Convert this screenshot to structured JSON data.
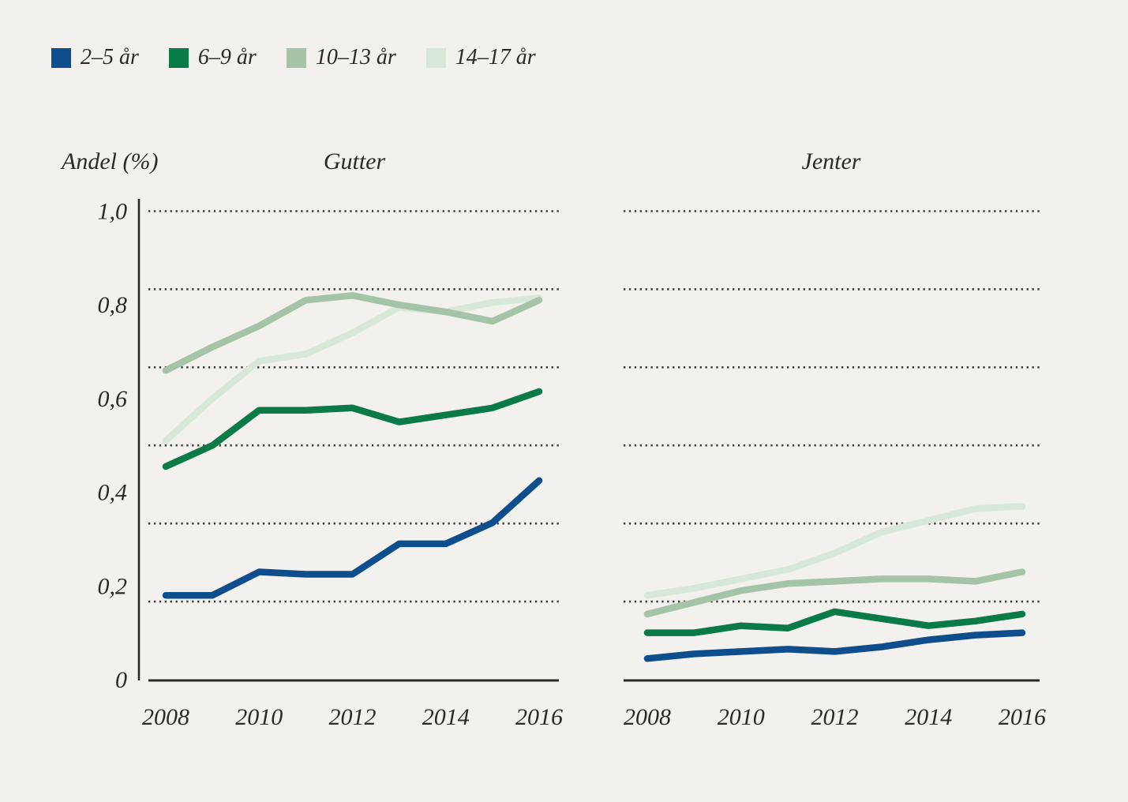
{
  "labels": {
    "y_axis_title": "Andel (%)"
  },
  "legend": {
    "items": [
      {
        "label": "2–5 år",
        "color": "#0f4e8c"
      },
      {
        "label": "6–9 år",
        "color": "#0a7a46"
      },
      {
        "label": "10–13 år",
        "color": "#a5c4a7"
      },
      {
        "label": "14–17 år",
        "color": "#d7e8d8"
      }
    ]
  },
  "chart_data": {
    "type": "line",
    "x": [
      2008,
      2009,
      2010,
      2011,
      2012,
      2013,
      2014,
      2015,
      2016
    ],
    "x_tick_labels": [
      "2008",
      "2010",
      "2012",
      "2014",
      "2016"
    ],
    "y_tick_labels": [
      "1,0",
      "0,8",
      "0,6",
      "0,4",
      "0,2",
      "0"
    ],
    "y_tick_values": [
      1.0,
      0.8,
      0.6,
      0.4,
      0.2,
      0
    ],
    "gridline_values": [
      1.0,
      0.8333,
      0.6667,
      0.5,
      0.3333,
      0.1667
    ],
    "ylim": [
      0,
      1.0
    ],
    "grid": "dotted",
    "legend_position": "top-left",
    "colors": {
      "background": "#f2f1ee",
      "text": "#2b2a26",
      "gridline": "#3c3b37",
      "axis": "#2b2a26"
    },
    "panels": [
      {
        "title": "Gutter",
        "series": [
          {
            "name": "2–5 år",
            "color": "#0f4e8c",
            "values": [
              0.18,
              0.18,
              0.23,
              0.225,
              0.225,
              0.29,
              0.29,
              0.335,
              0.425
            ]
          },
          {
            "name": "6–9 år",
            "color": "#0a7a46",
            "values": [
              0.455,
              0.5,
              0.575,
              0.575,
              0.58,
              0.55,
              0.565,
              0.58,
              0.615
            ]
          },
          {
            "name": "10–13 år",
            "color": "#a5c4a7",
            "values": [
              0.66,
              0.71,
              0.755,
              0.81,
              0.82,
              0.8,
              0.785,
              0.765,
              0.81
            ]
          },
          {
            "name": "14–17 år",
            "color": "#d7e8d8",
            "values": [
              0.51,
              0.6,
              0.68,
              0.695,
              0.74,
              0.795,
              0.785,
              0.805,
              0.815
            ]
          }
        ]
      },
      {
        "title": "Jenter",
        "series": [
          {
            "name": "2–5 år",
            "color": "#0f4e8c",
            "values": [
              0.045,
              0.055,
              0.06,
              0.065,
              0.06,
              0.07,
              0.085,
              0.095,
              0.1
            ]
          },
          {
            "name": "6–9 år",
            "color": "#0a7a46",
            "values": [
              0.1,
              0.1,
              0.115,
              0.11,
              0.145,
              0.13,
              0.115,
              0.125,
              0.14
            ]
          },
          {
            "name": "10–13 år",
            "color": "#a5c4a7",
            "values": [
              0.14,
              0.165,
              0.19,
              0.205,
              0.21,
              0.215,
              0.215,
              0.21,
              0.23
            ]
          },
          {
            "name": "14–17 år",
            "color": "#d7e8d8",
            "values": [
              0.18,
              0.195,
              0.215,
              0.235,
              0.27,
              0.315,
              0.34,
              0.365,
              0.37
            ]
          }
        ]
      }
    ]
  }
}
